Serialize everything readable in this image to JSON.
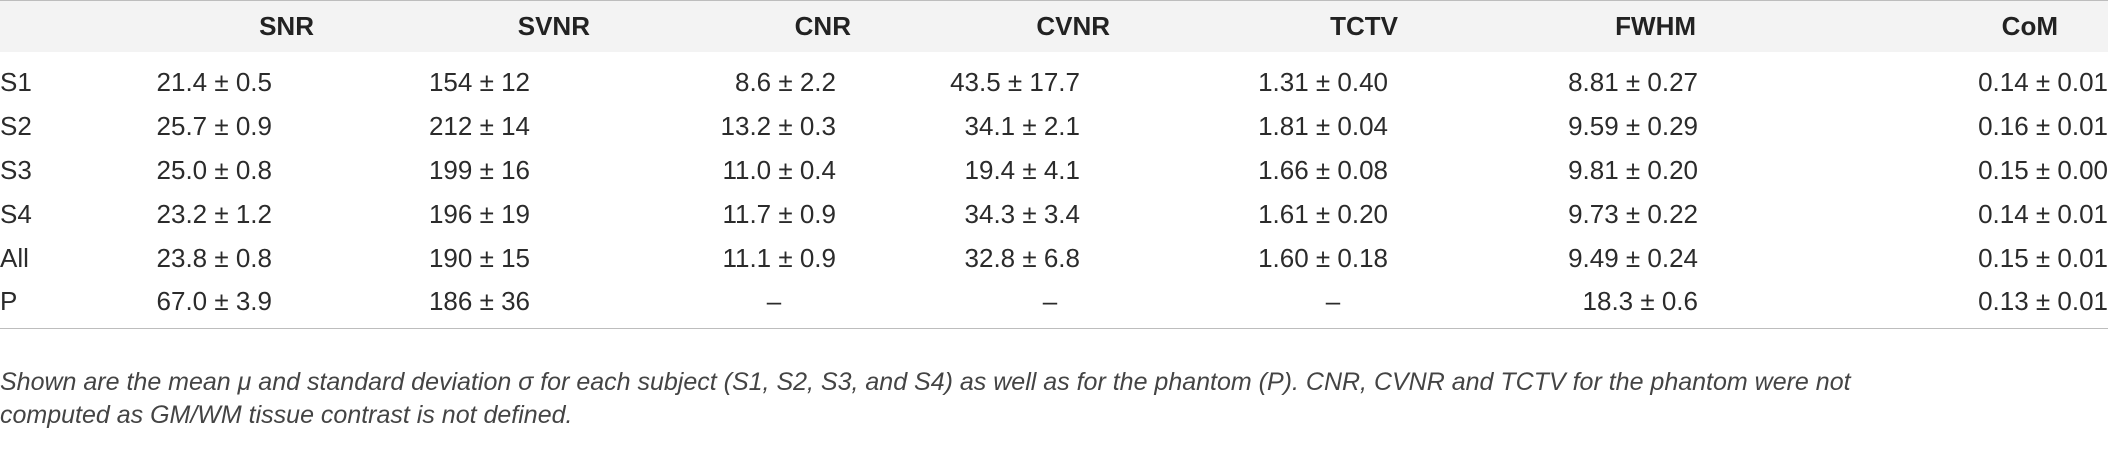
{
  "table": {
    "headers": [
      "",
      "SNR",
      "SVNR",
      "CNR",
      "CVNR",
      "TCTV",
      "FWHM",
      "CoM"
    ],
    "rows": [
      {
        "label": "S1",
        "values": [
          "21.4 ± 0.5",
          "154 ± 12",
          "8.6 ± 2.2",
          "43.5 ± 17.7",
          "1.31 ± 0.40",
          "8.81 ± 0.27",
          "0.14 ± 0.01"
        ]
      },
      {
        "label": "S2",
        "values": [
          "25.7 ± 0.9",
          "212 ± 14",
          "13.2 ± 0.3",
          "34.1 ± 2.1",
          "1.81 ± 0.04",
          "9.59 ± 0.29",
          "0.16 ± 0.01"
        ]
      },
      {
        "label": "S3",
        "values": [
          "25.0 ± 0.8",
          "199 ± 16",
          "11.0 ± 0.4",
          "19.4 ± 4.1",
          "1.66 ± 0.08",
          "9.81 ± 0.20",
          "0.15 ± 0.00"
        ]
      },
      {
        "label": "S4",
        "values": [
          "23.2 ± 1.2",
          "196 ± 19",
          "11.7 ± 0.9",
          "34.3 ± 3.4",
          "1.61 ± 0.20",
          "9.73 ± 0.22",
          "0.14 ± 0.01"
        ]
      },
      {
        "label": "All",
        "values": [
          "23.8 ± 0.8",
          "190 ± 15",
          "11.1 ± 0.9",
          "32.8 ± 6.8",
          "1.60 ± 0.18",
          "9.49 ± 0.24",
          "0.15 ± 0.01"
        ]
      },
      {
        "label": "P",
        "values": [
          "67.0 ± 3.9",
          "186 ± 36",
          "–",
          "–",
          "–",
          "18.3 ± 0.6",
          "0.13 ± 0.01"
        ]
      }
    ]
  },
  "caption": {
    "line1": "Shown are the mean μ and standard deviation σ for each subject (S1, S2, S3, and S4) as well as for the phantom (P). CNR, CVNR and TCTV for the phantom were not",
    "line2": "computed as GM/WM tissue contrast is not defined."
  }
}
